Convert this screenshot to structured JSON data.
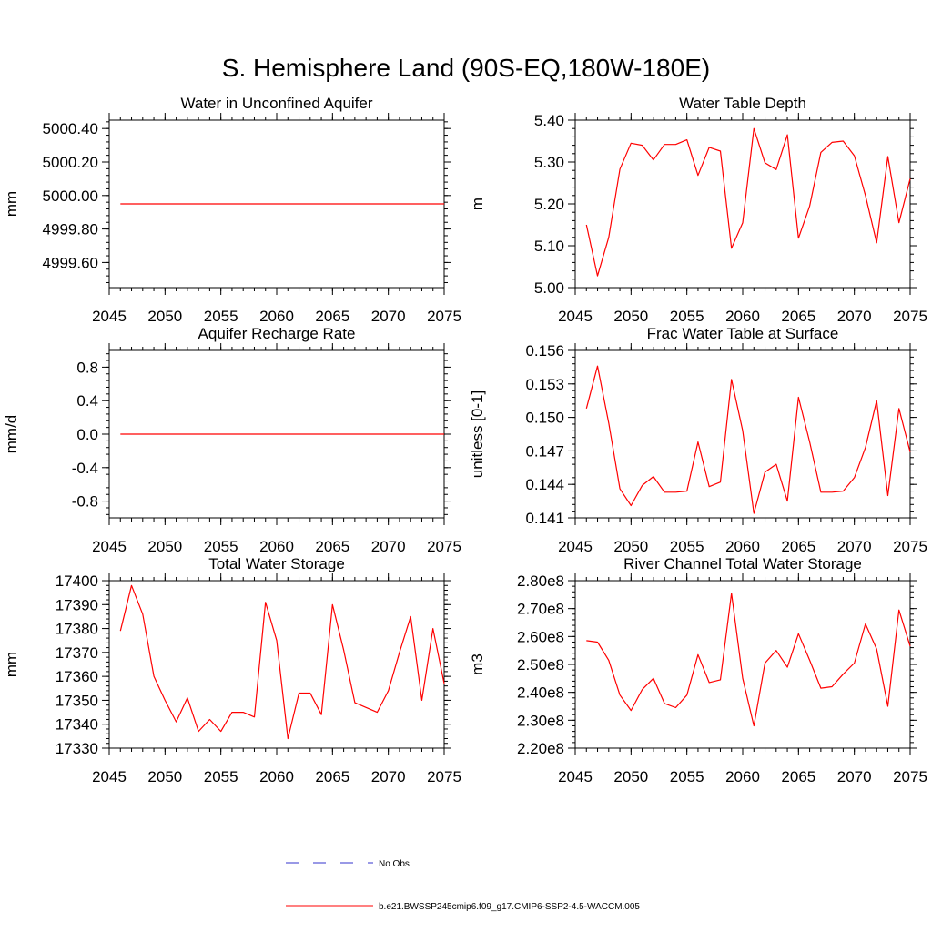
{
  "page_title": "S. Hemisphere Land (90S-EQ,180W-180E)",
  "colors": {
    "model": "#ff0000",
    "obs": "#3333cc",
    "axis": "#000000"
  },
  "legend": {
    "obs_label": "No Obs",
    "model_label": "b.e21.BWSSP245cmip6.f09_g17.CMIP6-SSP2-4.5-WACCM.005"
  },
  "chart_data": [
    {
      "type": "line",
      "title": "Water in Unconfined Aquifer",
      "ylabel": "mm",
      "xlim": [
        2045,
        2075
      ],
      "ylim": [
        4999.45,
        5000.45
      ],
      "yticks": [
        4999.6,
        4999.8,
        5000.0,
        5000.2,
        5000.4
      ],
      "ytick_labels": [
        "4999.60",
        "4999.80",
        "5000.00",
        "5000.20",
        "5000.40"
      ],
      "xticks": [
        2045,
        2050,
        2055,
        2060,
        2065,
        2070,
        2075
      ],
      "xtick_labels": [
        "2045",
        "2050",
        "2055",
        "2060",
        "2065",
        "2070",
        "2075"
      ],
      "x": [
        2046,
        2047,
        2048,
        2049,
        2050,
        2051,
        2052,
        2053,
        2054,
        2055,
        2056,
        2057,
        2058,
        2059,
        2060,
        2061,
        2062,
        2063,
        2064,
        2065,
        2066,
        2067,
        2068,
        2069,
        2070,
        2071,
        2072,
        2073,
        2074,
        2075
      ],
      "values": [
        4999.95,
        4999.95,
        4999.95,
        4999.95,
        4999.95,
        4999.95,
        4999.95,
        4999.95,
        4999.95,
        4999.95,
        4999.95,
        4999.95,
        4999.95,
        4999.95,
        4999.95,
        4999.95,
        4999.95,
        4999.95,
        4999.95,
        4999.95,
        4999.95,
        4999.95,
        4999.95,
        4999.95,
        4999.95,
        4999.95,
        4999.95,
        4999.95,
        4999.95,
        4999.95
      ]
    },
    {
      "type": "line",
      "title": "Water Table Depth",
      "ylabel": "m",
      "xlim": [
        2045,
        2075
      ],
      "ylim": [
        5.0,
        5.4
      ],
      "yticks": [
        5.0,
        5.1,
        5.2,
        5.3,
        5.4
      ],
      "ytick_labels": [
        "5.00",
        "5.10",
        "5.20",
        "5.30",
        "5.40"
      ],
      "xticks": [
        2045,
        2050,
        2055,
        2060,
        2065,
        2070,
        2075
      ],
      "xtick_labels": [
        "2045",
        "2050",
        "2055",
        "2060",
        "2065",
        "2070",
        "2075"
      ],
      "x": [
        2046,
        2047,
        2048,
        2049,
        2050,
        2051,
        2052,
        2053,
        2054,
        2055,
        2056,
        2057,
        2058,
        2059,
        2060,
        2061,
        2062,
        2063,
        2064,
        2065,
        2066,
        2067,
        2068,
        2069,
        2070,
        2071,
        2072,
        2073,
        2074,
        2075
      ],
      "values": [
        5.15,
        5.028,
        5.12,
        5.283,
        5.345,
        5.34,
        5.305,
        5.342,
        5.342,
        5.353,
        5.268,
        5.335,
        5.326,
        5.094,
        5.155,
        5.38,
        5.298,
        5.282,
        5.365,
        5.118,
        5.195,
        5.323,
        5.347,
        5.35,
        5.315,
        5.22,
        5.107,
        5.313,
        5.155,
        5.26
      ]
    },
    {
      "type": "line",
      "title": "Aquifer Recharge Rate",
      "ylabel": "mm/d",
      "xlim": [
        2045,
        2075
      ],
      "ylim": [
        -1.0,
        1.0
      ],
      "yticks": [
        -0.8,
        -0.4,
        0.0,
        0.4,
        0.8
      ],
      "ytick_labels": [
        "-0.8",
        "-0.4",
        "0.0",
        "0.4",
        "0.8"
      ],
      "xticks": [
        2045,
        2050,
        2055,
        2060,
        2065,
        2070,
        2075
      ],
      "xtick_labels": [
        "2045",
        "2050",
        "2055",
        "2060",
        "2065",
        "2070",
        "2075"
      ],
      "x": [
        2046,
        2047,
        2048,
        2049,
        2050,
        2051,
        2052,
        2053,
        2054,
        2055,
        2056,
        2057,
        2058,
        2059,
        2060,
        2061,
        2062,
        2063,
        2064,
        2065,
        2066,
        2067,
        2068,
        2069,
        2070,
        2071,
        2072,
        2073,
        2074,
        2075
      ],
      "values": [
        0,
        0,
        0,
        0,
        0,
        0,
        0,
        0,
        0,
        0,
        0,
        0,
        0,
        0,
        0,
        0,
        0,
        0,
        0,
        0,
        0,
        0,
        0,
        0,
        0,
        0,
        0,
        0,
        0,
        0
      ]
    },
    {
      "type": "line",
      "title": "Frac Water Table at Surface",
      "ylabel": "unitless [0-1]",
      "xlim": [
        2045,
        2075
      ],
      "ylim": [
        0.141,
        0.156
      ],
      "yticks": [
        0.141,
        0.144,
        0.147,
        0.15,
        0.153,
        0.156
      ],
      "ytick_labels": [
        "0.141",
        "0.144",
        "0.147",
        "0.150",
        "0.153",
        "0.156"
      ],
      "xticks": [
        2045,
        2050,
        2055,
        2060,
        2065,
        2070,
        2075
      ],
      "xtick_labels": [
        "2045",
        "2050",
        "2055",
        "2060",
        "2065",
        "2070",
        "2075"
      ],
      "x": [
        2046,
        2047,
        2048,
        2049,
        2050,
        2051,
        2052,
        2053,
        2054,
        2055,
        2056,
        2057,
        2058,
        2059,
        2060,
        2061,
        2062,
        2063,
        2064,
        2065,
        2066,
        2067,
        2068,
        2069,
        2070,
        2071,
        2072,
        2073,
        2074,
        2075
      ],
      "values": [
        0.1508,
        0.1546,
        0.1495,
        0.1436,
        0.1421,
        0.1439,
        0.1447,
        0.1433,
        0.1433,
        0.1434,
        0.1478,
        0.1438,
        0.1442,
        0.1534,
        0.1488,
        0.1414,
        0.1451,
        0.1458,
        0.1425,
        0.1518,
        0.1478,
        0.1433,
        0.1433,
        0.1434,
        0.1446,
        0.1473,
        0.1515,
        0.143,
        0.1508,
        0.1469
      ]
    },
    {
      "type": "line",
      "title": "Total Water Storage",
      "ylabel": "mm",
      "xlim": [
        2045,
        2075
      ],
      "ylim": [
        17330,
        17400
      ],
      "yticks": [
        17330,
        17340,
        17350,
        17360,
        17370,
        17380,
        17390,
        17400
      ],
      "ytick_labels": [
        "17330",
        "17340",
        "17350",
        "17360",
        "17370",
        "17380",
        "17390",
        "17400"
      ],
      "xticks": [
        2045,
        2050,
        2055,
        2060,
        2065,
        2070,
        2075
      ],
      "xtick_labels": [
        "2045",
        "2050",
        "2055",
        "2060",
        "2065",
        "2070",
        "2075"
      ],
      "x": [
        2046,
        2047,
        2048,
        2049,
        2050,
        2051,
        2052,
        2053,
        2054,
        2055,
        2056,
        2057,
        2058,
        2059,
        2060,
        2061,
        2062,
        2063,
        2064,
        2065,
        2066,
        2067,
        2068,
        2069,
        2070,
        2071,
        2072,
        2073,
        2074,
        2075
      ],
      "values": [
        17379,
        17398,
        17386,
        17360,
        17350,
        17341,
        17351,
        17337,
        17342,
        17337,
        17345,
        17345,
        17343,
        17391,
        17375,
        17334,
        17353,
        17353,
        17344,
        17390,
        17371,
        17349,
        17347,
        17345,
        17354,
        17370,
        17385,
        17350,
        17380,
        17357
      ]
    },
    {
      "type": "line",
      "title": "River Channel Total Water Storage",
      "ylabel": "m3",
      "xlim": [
        2045,
        2075
      ],
      "ylim": [
        220000000,
        280000000
      ],
      "yticks": [
        220000000,
        230000000,
        240000000,
        250000000,
        260000000,
        270000000,
        280000000
      ],
      "ytick_labels": [
        "2.20e8",
        "2.30e8",
        "2.40e8",
        "2.50e8",
        "2.60e8",
        "2.70e8",
        "2.80e8"
      ],
      "xticks": [
        2045,
        2050,
        2055,
        2060,
        2065,
        2070,
        2075
      ],
      "xtick_labels": [
        "2045",
        "2050",
        "2055",
        "2060",
        "2065",
        "2070",
        "2075"
      ],
      "x": [
        2046,
        2047,
        2048,
        2049,
        2050,
        2051,
        2052,
        2053,
        2054,
        2055,
        2056,
        2057,
        2058,
        2059,
        2060,
        2061,
        2062,
        2063,
        2064,
        2065,
        2066,
        2067,
        2068,
        2069,
        2070,
        2071,
        2072,
        2073,
        2074,
        2075
      ],
      "values": [
        258500000,
        258000000,
        251500000,
        239000000,
        233500000,
        241000000,
        245000000,
        236000000,
        234500000,
        239000000,
        253500000,
        243500000,
        244500000,
        275500000,
        245000000,
        228000000,
        250500000,
        255000000,
        249000000,
        261000000,
        251500000,
        241500000,
        242000000,
        246500000,
        250500000,
        264500000,
        255500000,
        235000000,
        269500000,
        256500000
      ]
    }
  ]
}
